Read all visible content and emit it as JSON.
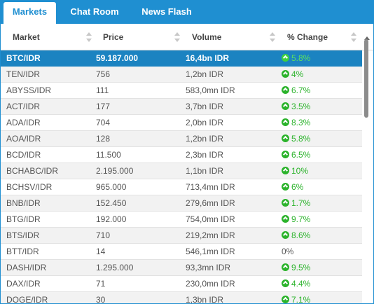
{
  "tabs": [
    {
      "label": "Markets",
      "active": true
    },
    {
      "label": "Chat Room",
      "active": false
    },
    {
      "label": "News Flash",
      "active": false
    }
  ],
  "columns": {
    "market": "Market",
    "price": "Price",
    "volume": "Volume",
    "change": "% Change"
  },
  "colors": {
    "accent": "#1f8fd1",
    "selected_row": "#1b83c1",
    "positive": "#2bb32b"
  },
  "rows": [
    {
      "market": "BTC/IDR",
      "price": "59.187.000",
      "volume": "16,4bn IDR",
      "change": "5.8%",
      "trend": "up",
      "selected": true
    },
    {
      "market": "TEN/IDR",
      "price": "756",
      "volume": "1,2bn IDR",
      "change": "4%",
      "trend": "up"
    },
    {
      "market": "ABYSS/IDR",
      "price": "111",
      "volume": "583,0mn IDR",
      "change": "6.7%",
      "trend": "up"
    },
    {
      "market": "ACT/IDR",
      "price": "177",
      "volume": "3,7bn IDR",
      "change": "3.5%",
      "trend": "up"
    },
    {
      "market": "ADA/IDR",
      "price": "704",
      "volume": "2,0bn IDR",
      "change": "8.3%",
      "trend": "up"
    },
    {
      "market": "AOA/IDR",
      "price": "128",
      "volume": "1,2bn IDR",
      "change": "5.8%",
      "trend": "up"
    },
    {
      "market": "BCD/IDR",
      "price": "11.500",
      "volume": "2,3bn IDR",
      "change": "6.5%",
      "trend": "up"
    },
    {
      "market": "BCHABC/IDR",
      "price": "2.195.000",
      "volume": "1,1bn IDR",
      "change": "10%",
      "trend": "up"
    },
    {
      "market": "BCHSV/IDR",
      "price": "965.000",
      "volume": "713,4mn IDR",
      "change": "6%",
      "trend": "up"
    },
    {
      "market": "BNB/IDR",
      "price": "152.450",
      "volume": "279,6mn IDR",
      "change": "1.7%",
      "trend": "up"
    },
    {
      "market": "BTG/IDR",
      "price": "192.000",
      "volume": "754,0mn IDR",
      "change": "9.7%",
      "trend": "up"
    },
    {
      "market": "BTS/IDR",
      "price": "710",
      "volume": "219,2mn IDR",
      "change": "8.6%",
      "trend": "up"
    },
    {
      "market": "BTT/IDR",
      "price": "14",
      "volume": "546,1mn IDR",
      "change": "0%",
      "trend": "flat"
    },
    {
      "market": "DASH/IDR",
      "price": "1.295.000",
      "volume": "93,3mn IDR",
      "change": "9.5%",
      "trend": "up"
    },
    {
      "market": "DAX/IDR",
      "price": "71",
      "volume": "230,0mn IDR",
      "change": "4.4%",
      "trend": "up"
    },
    {
      "market": "DOGE/IDR",
      "price": "30",
      "volume": "1,3bn IDR",
      "change": "7.1%",
      "trend": "up"
    }
  ]
}
